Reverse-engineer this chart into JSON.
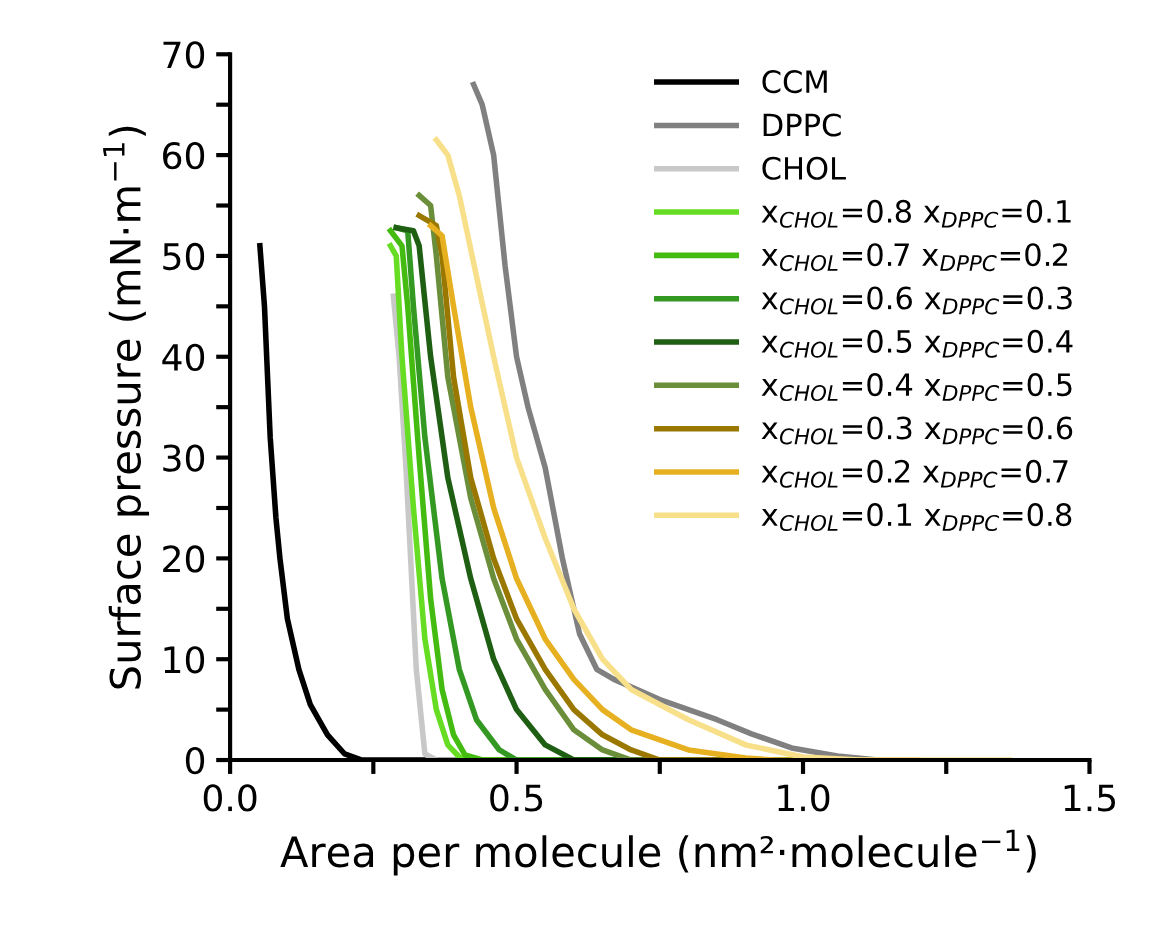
{
  "chart_data": {
    "type": "line",
    "xlabel": "Area per molecule (nm²·molecule$^{−1}$)",
    "ylabel": "Surface pressure (mN·m$^{−1}$)",
    "xlim": [
      0,
      1.5
    ],
    "ylim": [
      0,
      70
    ],
    "xticks": [
      {
        "value": 0,
        "label": "0.0"
      },
      {
        "value": 0.25,
        "label": null
      },
      {
        "value": 0.5,
        "label": "0.5"
      },
      {
        "value": 0.75,
        "label": null
      },
      {
        "value": 1.0,
        "label": "1.0"
      },
      {
        "value": 1.25,
        "label": null
      },
      {
        "value": 1.5,
        "label": "1.5"
      }
    ],
    "yticks": [
      0,
      {
        "value": 5,
        "label": null
      },
      10,
      {
        "value": 15,
        "label": null
      },
      20,
      {
        "value": 25,
        "label": null
      },
      30,
      {
        "value": 35,
        "label": null
      },
      40,
      {
        "value": 45,
        "label": null
      },
      50,
      {
        "value": 55,
        "label": null
      },
      60,
      {
        "value": 65,
        "label": null
      },
      70
    ],
    "grid": false,
    "legend": "top right",
    "marker": "none",
    "line_style": "solid",
    "series": [
      {
        "name": "CCM",
        "color": "#000000",
        "x": [
          0.052,
          0.06,
          0.07,
          0.08,
          0.087,
          0.1,
          0.12,
          0.14,
          0.17,
          0.2,
          0.23,
          0.3,
          0.5
        ],
        "values": [
          51,
          45,
          32,
          24,
          20,
          14,
          9,
          5.5,
          2.5,
          0.6,
          0,
          0,
          0
        ]
      },
      {
        "name": "DPPC",
        "color": "#808080",
        "x": [
          0.425,
          0.44,
          0.46,
          0.48,
          0.5,
          0.52,
          0.55,
          0.58,
          0.61,
          0.64,
          0.67,
          0.75,
          0.85,
          0.91,
          0.98,
          1.06,
          1.13
        ],
        "values": [
          67,
          65,
          60,
          49,
          40,
          35,
          29,
          20,
          12.5,
          9,
          8,
          6,
          4,
          2.6,
          1.2,
          0.4,
          0
        ]
      },
      {
        "name": "CHOL",
        "color": "#c8c8c8",
        "x": [
          0.285,
          0.295,
          0.307,
          0.325,
          0.34,
          0.36,
          0.4
        ],
        "values": [
          46,
          40,
          29,
          9,
          0.6,
          0,
          0
        ]
      },
      {
        "name": "x$_{CHOL}$=0.8 x$_{DPPC}$=0.1",
        "color": "#66dd22",
        "x": [
          0.28,
          0.29,
          0.3,
          0.32,
          0.34,
          0.36,
          0.38,
          0.4,
          0.42,
          1.0
        ],
        "values": [
          51,
          50,
          40,
          25,
          12,
          5,
          1.5,
          0.3,
          0,
          0
        ]
      },
      {
        "name": "x$_{CHOL}$=0.7 x$_{DPPC}$=0.2",
        "color": "#44bb11",
        "x": [
          0.28,
          0.3,
          0.31,
          0.33,
          0.35,
          0.37,
          0.39,
          0.41,
          0.44,
          1.0
        ],
        "values": [
          52.5,
          51,
          45,
          30,
          16,
          7,
          2.5,
          0.5,
          0,
          0
        ]
      },
      {
        "name": "x$_{CHOL}$=0.6 x$_{DPPC}$=0.3",
        "color": "#339922",
        "x": [
          0.29,
          0.31,
          0.32,
          0.34,
          0.37,
          0.4,
          0.43,
          0.47,
          0.5,
          1.0
        ],
        "values": [
          52.8,
          52.5,
          45,
          32,
          18,
          9,
          4,
          1,
          0,
          0
        ]
      },
      {
        "name": "x$_{CHOL}$=0.5 x$_{DPPC}$=0.4",
        "color": "#1f5f14",
        "x": [
          0.29,
          0.32,
          0.33,
          0.35,
          0.38,
          0.42,
          0.46,
          0.5,
          0.55,
          0.6,
          0.9
        ],
        "values": [
          52.8,
          52.5,
          51,
          40,
          28,
          18,
          10,
          5,
          1.5,
          0,
          0
        ]
      },
      {
        "name": "x$_{CHOL}$=0.4 x$_{DPPC}$=0.5",
        "color": "#6b8e3a",
        "x": [
          0.33,
          0.35,
          0.36,
          0.38,
          0.42,
          0.46,
          0.5,
          0.55,
          0.6,
          0.65,
          0.7,
          0.9
        ],
        "values": [
          56,
          55,
          50,
          38,
          26,
          18,
          12,
          7,
          3,
          1,
          0,
          0
        ]
      },
      {
        "name": "x$_{CHOL}$=0.3 x$_{DPPC}$=0.6",
        "color": "#9a7800",
        "x": [
          0.33,
          0.36,
          0.37,
          0.39,
          0.42,
          0.46,
          0.5,
          0.55,
          0.6,
          0.65,
          0.7,
          0.75,
          0.95
        ],
        "values": [
          54,
          53,
          50,
          38,
          28,
          20,
          14,
          9,
          5,
          2.5,
          1,
          0,
          0
        ]
      },
      {
        "name": "x$_{CHOL}$=0.2 x$_{DPPC}$=0.7",
        "color": "#e6b020",
        "x": [
          0.35,
          0.37,
          0.39,
          0.42,
          0.46,
          0.5,
          0.55,
          0.6,
          0.65,
          0.7,
          0.8,
          0.9,
          0.95,
          1.2
        ],
        "values": [
          53,
          52,
          45,
          35,
          25,
          18,
          12,
          8,
          5,
          3,
          1,
          0.2,
          0,
          0
        ]
      },
      {
        "name": "x$_{CHOL}$=0.1 x$_{DPPC}$=0.8",
        "color": "#f8e08a",
        "x": [
          0.36,
          0.38,
          0.4,
          0.43,
          0.46,
          0.5,
          0.55,
          0.6,
          0.65,
          0.7,
          0.8,
          0.9,
          1.0,
          1.1,
          1.36
        ],
        "values": [
          61.5,
          60,
          56,
          48,
          40,
          30,
          22,
          15,
          10,
          7,
          4,
          1.5,
          0.3,
          0,
          0
        ]
      }
    ]
  }
}
